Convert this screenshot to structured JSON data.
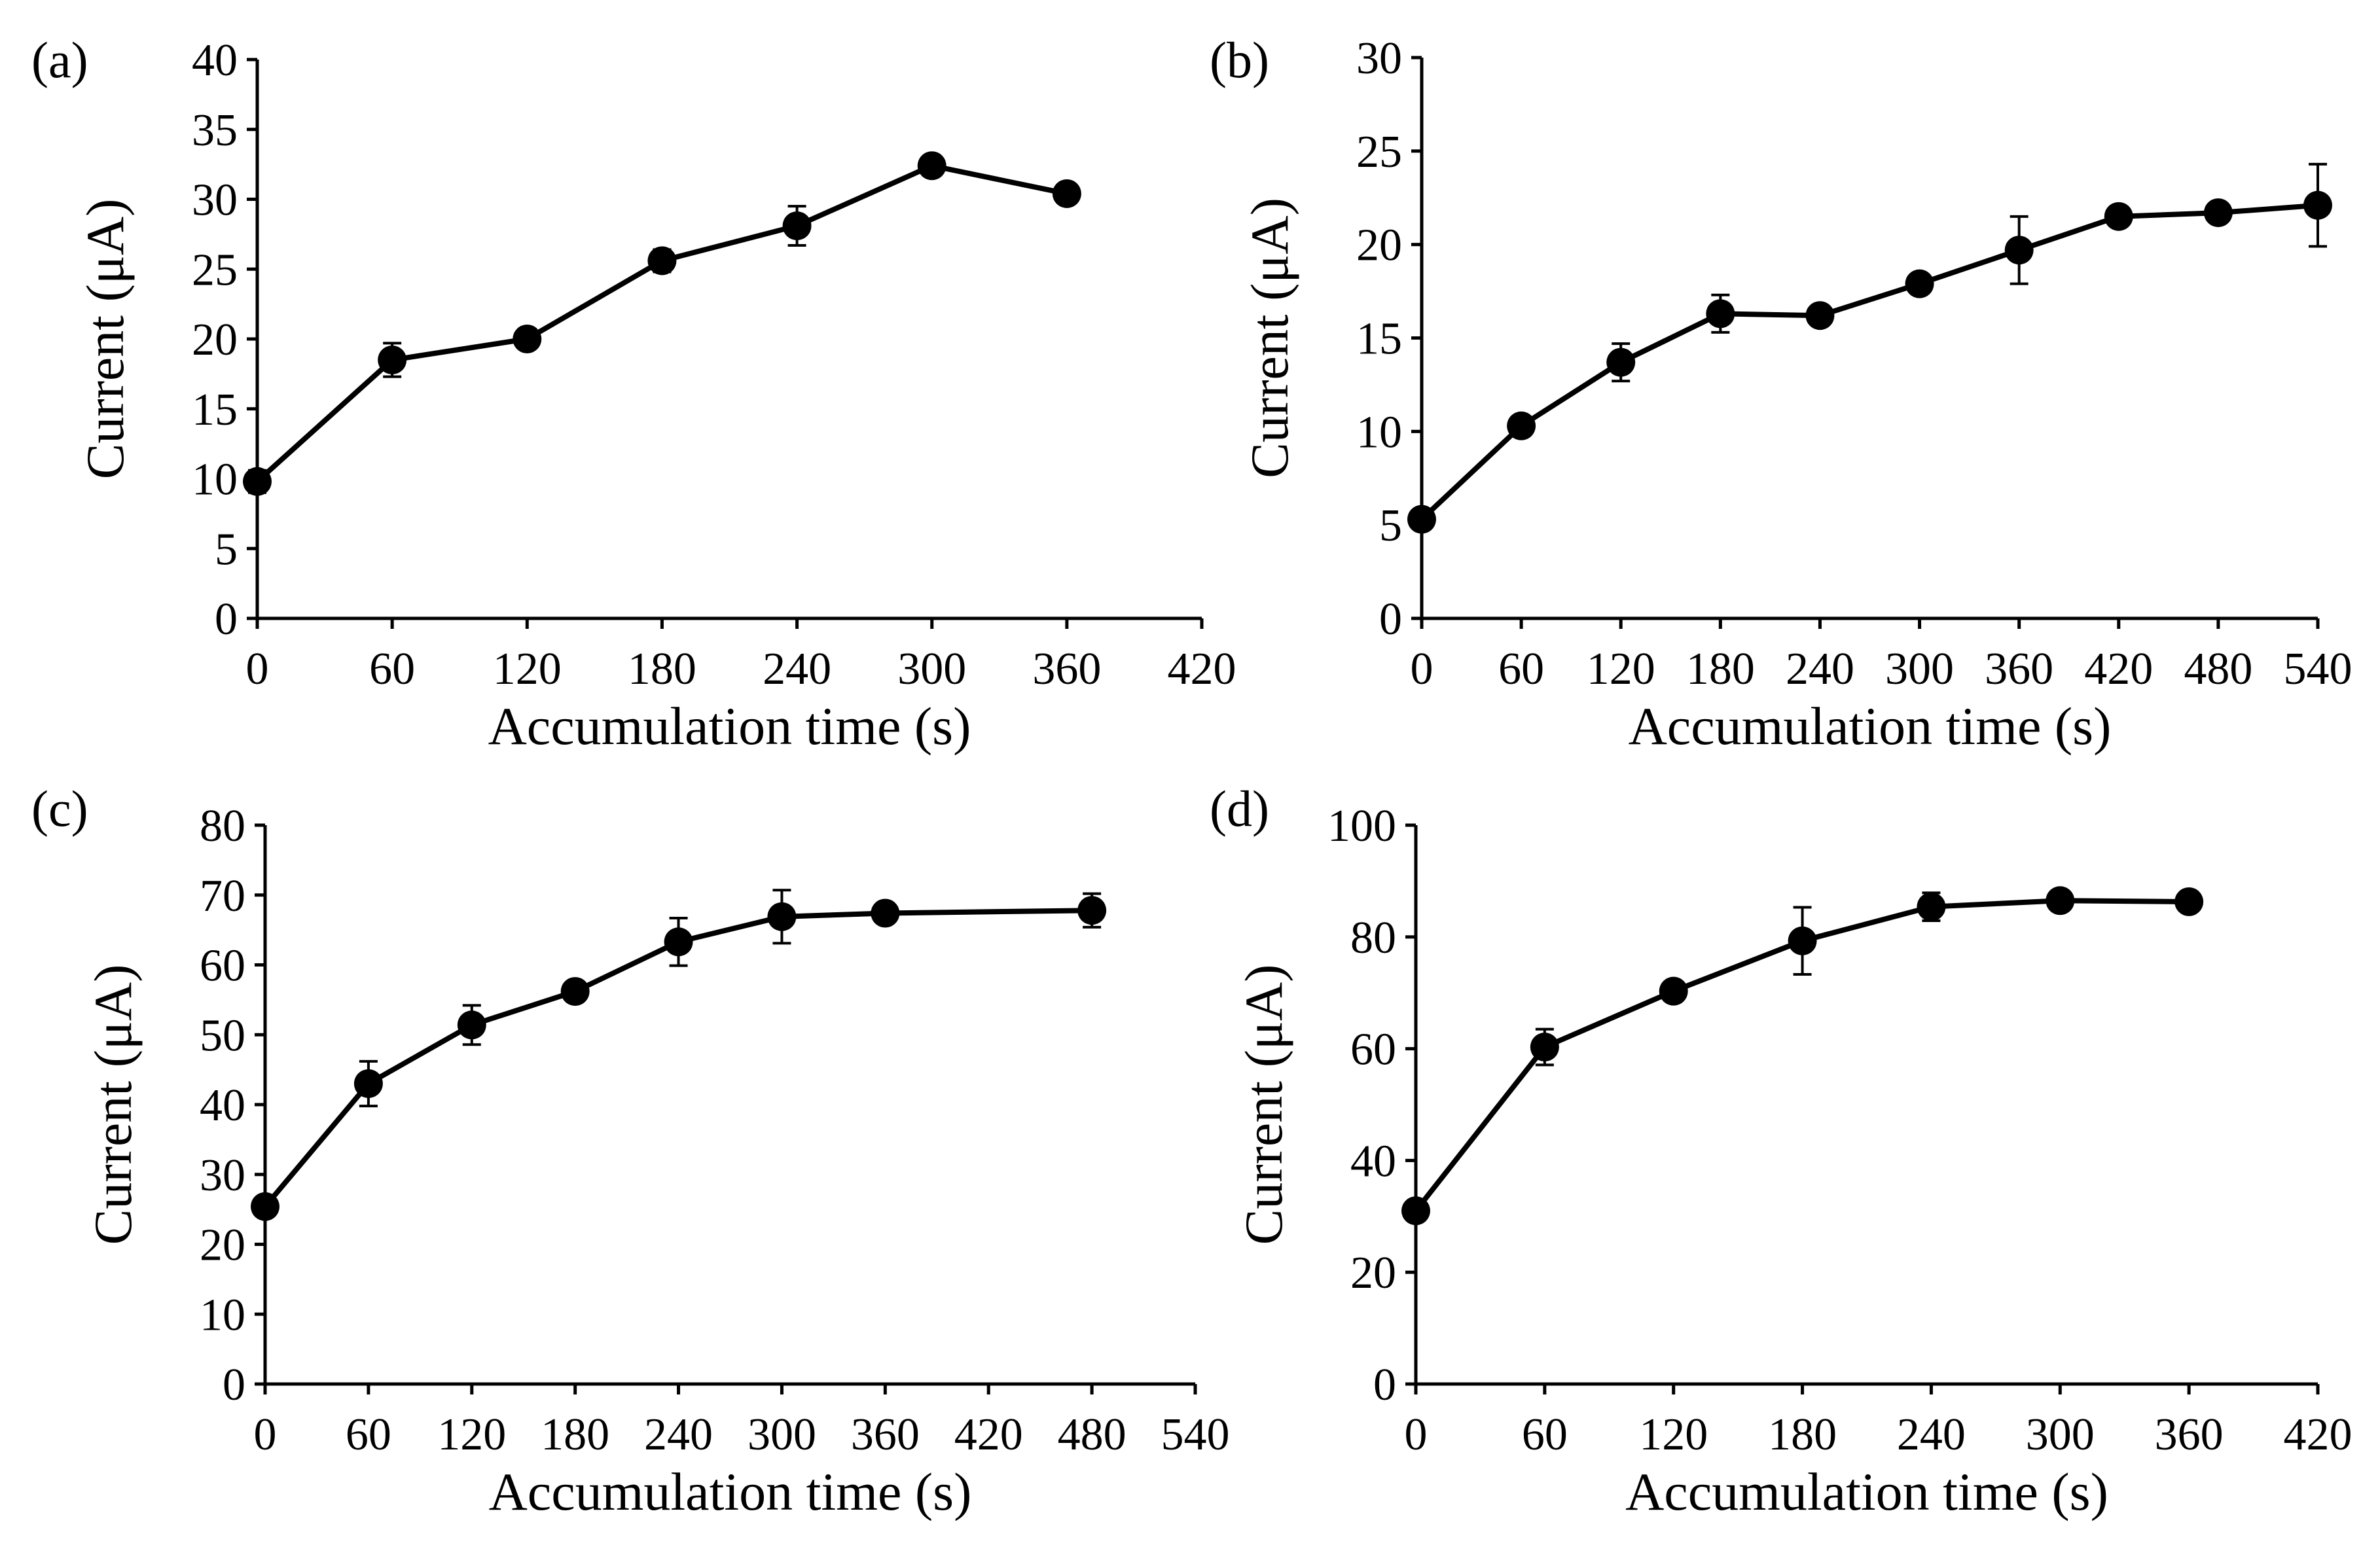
{
  "figure": {
    "panel_count": 4
  },
  "chart_data": [
    {
      "type": "line",
      "panel_label": "(a)",
      "xlabel": "Accumulation time (s)",
      "ylabel": "Current (μA)",
      "xlim": [
        0,
        420
      ],
      "ylim": [
        0,
        40
      ],
      "xticks": [
        0,
        60,
        120,
        180,
        240,
        300,
        360,
        420
      ],
      "yticks": [
        0,
        5,
        10,
        15,
        20,
        25,
        30,
        35,
        40
      ],
      "grid": false,
      "x": [
        0,
        60,
        120,
        180,
        240,
        300,
        360
      ],
      "series": [
        {
          "name": "Current",
          "values": [
            9.8,
            18.5,
            20.0,
            25.6,
            28.1,
            32.4,
            30.4
          ],
          "errors": [
            0.8,
            1.2,
            0.6,
            0.8,
            1.4,
            0.7,
            0.5
          ]
        }
      ]
    },
    {
      "type": "line",
      "panel_label": "(b)",
      "xlabel": "Accumulation time (s)",
      "ylabel": "Current (μA)",
      "xlim": [
        0,
        540
      ],
      "ylim": [
        0,
        30
      ],
      "xticks": [
        0,
        60,
        120,
        180,
        240,
        300,
        360,
        420,
        480,
        540
      ],
      "yticks": [
        0,
        5,
        10,
        15,
        20,
        25,
        30
      ],
      "grid": false,
      "x": [
        0,
        60,
        120,
        180,
        240,
        300,
        360,
        420,
        480,
        540
      ],
      "series": [
        {
          "name": "Current",
          "values": [
            5.3,
            10.3,
            13.7,
            16.3,
            16.2,
            17.9,
            19.7,
            21.5,
            21.7,
            22.1
          ],
          "errors": [
            0.4,
            0.5,
            1.0,
            1.0,
            0.4,
            0.5,
            1.8,
            0.4,
            0.4,
            2.2
          ]
        }
      ]
    },
    {
      "type": "line",
      "panel_label": "(c)",
      "xlabel": "Accumulation time (s)",
      "ylabel": "Current (μA)",
      "xlim": [
        0,
        540
      ],
      "ylim": [
        0,
        80
      ],
      "xticks": [
        0,
        60,
        120,
        180,
        240,
        300,
        360,
        420,
        480,
        540
      ],
      "yticks": [
        0,
        10,
        20,
        30,
        40,
        50,
        60,
        70,
        80
      ],
      "grid": false,
      "x": [
        0,
        60,
        120,
        180,
        240,
        300,
        360,
        480
      ],
      "series": [
        {
          "name": "Current",
          "values": [
            25.4,
            43.0,
            51.4,
            56.2,
            63.3,
            66.9,
            67.4,
            67.8
          ],
          "errors": [
            1.0,
            3.2,
            2.8,
            0.8,
            3.4,
            3.8,
            0.6,
            2.4
          ]
        }
      ]
    },
    {
      "type": "line",
      "panel_label": "(d)",
      "xlabel": "Accumulation time (s)",
      "ylabel": "Current (μA)",
      "xlim": [
        0,
        420
      ],
      "ylim": [
        0,
        100
      ],
      "xticks": [
        0,
        60,
        120,
        180,
        240,
        300,
        360,
        420
      ],
      "yticks": [
        0,
        20,
        40,
        60,
        80,
        100
      ],
      "grid": false,
      "x": [
        0,
        60,
        120,
        180,
        240,
        300,
        360
      ],
      "series": [
        {
          "name": "Current",
          "values": [
            31.0,
            60.3,
            70.3,
            79.3,
            85.4,
            86.5,
            86.3
          ],
          "errors": [
            1.2,
            3.2,
            1.2,
            6.0,
            2.5,
            1.2,
            1.0
          ]
        }
      ]
    }
  ]
}
